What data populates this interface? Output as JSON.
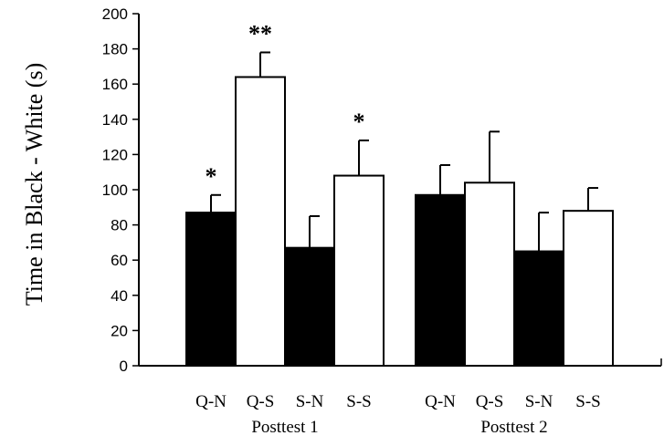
{
  "chart_data": {
    "type": "bar",
    "title": "",
    "xlabel": "",
    "ylabel": "Time in Black - White (s)",
    "ylim": [
      0,
      200
    ],
    "yticks": [
      0,
      20,
      40,
      60,
      80,
      100,
      120,
      140,
      160,
      180,
      200
    ],
    "grid": false,
    "groups": [
      {
        "label": "Posttest 1",
        "bars": [
          {
            "category": "Q-N",
            "value": 87,
            "error": 10,
            "fill": "#000000",
            "significance": "*"
          },
          {
            "category": "Q-S",
            "value": 164,
            "error": 14,
            "fill": "#ffffff",
            "significance": "**"
          },
          {
            "category": "S-N",
            "value": 67,
            "error": 18,
            "fill": "#000000",
            "significance": ""
          },
          {
            "category": "S-S",
            "value": 108,
            "error": 20,
            "fill": "#ffffff",
            "significance": "*"
          }
        ]
      },
      {
        "label": "Posttest 2",
        "bars": [
          {
            "category": "Q-N",
            "value": 97,
            "error": 17,
            "fill": "#000000",
            "significance": ""
          },
          {
            "category": "Q-S",
            "value": 104,
            "error": 29,
            "fill": "#ffffff",
            "significance": ""
          },
          {
            "category": "S-N",
            "value": 65,
            "error": 22,
            "fill": "#000000",
            "significance": ""
          },
          {
            "category": "S-S",
            "value": 88,
            "error": 13,
            "fill": "#ffffff",
            "significance": ""
          }
        ]
      }
    ]
  }
}
